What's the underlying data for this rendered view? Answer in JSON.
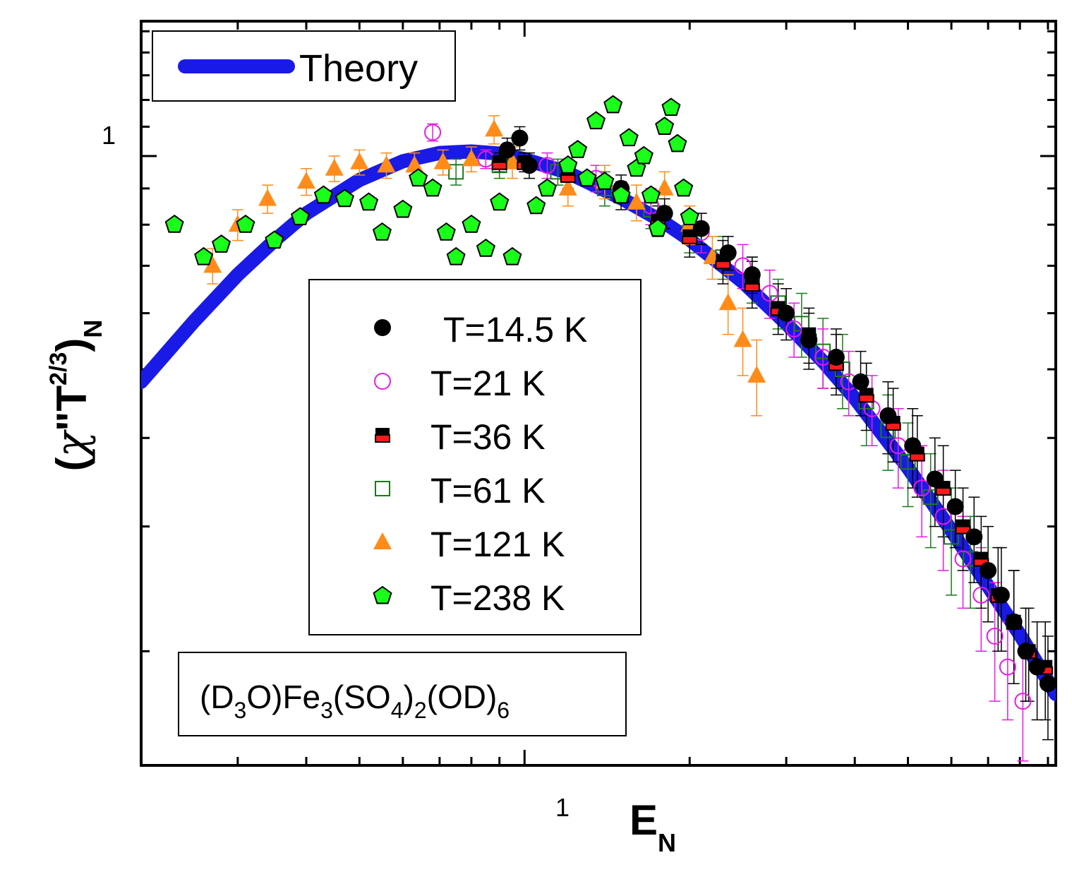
{
  "chart_data": {
    "type": "scatter",
    "x_scale": "log",
    "y_scale": "log",
    "xlim": [
      0.2,
      9.3
    ],
    "ylim": [
      0.138,
      1.55
    ],
    "xticks_major": [
      1
    ],
    "xticks_minor": [
      0.3,
      0.4,
      0.5,
      0.6,
      0.7,
      0.8,
      0.9,
      2,
      3,
      4,
      5,
      6,
      7,
      8,
      9
    ],
    "yticks_major": [
      1
    ],
    "yticks_minor": [
      0.2,
      0.3,
      0.4,
      0.5,
      0.6,
      0.7,
      0.8,
      0.9,
      1.1,
      1.2,
      1.3,
      1.4,
      1.5
    ],
    "xtick_labels": {
      "major": "1"
    },
    "ytick_labels": {
      "major": "1"
    },
    "xlabel": {
      "main": "E",
      "sub": "N"
    },
    "ylabel": {
      "open": "(",
      "chi": "χ",
      "prime": "\"",
      "T": "T",
      "exp": "2/3",
      "close": ")",
      "sub": "N"
    },
    "theory_legend": {
      "label": "Theory"
    },
    "formula": {
      "p1": "(D",
      "s1": "3",
      "p2": "O)Fe",
      "s2": "3",
      "p3": "(SO",
      "s3": "4",
      "p4": ")",
      "s4": "2",
      "p5": "(OD)",
      "s5": "6"
    },
    "colors": {
      "theory": "#1a1ae6",
      "t14": "#000000",
      "t21": "#e619e6",
      "t36_top": "#000000",
      "t36_bottom": "#ff1a1a",
      "t61": "#1a7a1a",
      "t121": "#ff8c1a",
      "t238": "#1aff1a"
    },
    "theory": {
      "name": "Theory",
      "x": [
        0.2,
        0.25,
        0.3,
        0.35,
        0.4,
        0.5,
        0.6,
        0.7,
        0.8,
        0.9,
        1.0,
        1.2,
        1.5,
        1.8,
        2.0,
        2.5,
        3.0,
        3.5,
        4.0,
        5.0,
        6.0,
        7.0,
        8.0,
        9.3
      ],
      "y": [
        0.48,
        0.585,
        0.68,
        0.76,
        0.83,
        0.925,
        0.983,
        1.01,
        1.015,
        1.008,
        0.99,
        0.947,
        0.872,
        0.805,
        0.762,
        0.664,
        0.58,
        0.513,
        0.455,
        0.363,
        0.296,
        0.247,
        0.211,
        0.174
      ]
    },
    "series": [
      {
        "name": "T=14.5 K",
        "marker": "filled-circle",
        "x": [
          0.93,
          0.98,
          1.02,
          1.5,
          1.8,
          2.1,
          2.35,
          2.6,
          3.0,
          3.3,
          3.7,
          4.1,
          4.6,
          5.1,
          5.6,
          6.1,
          6.6,
          7.0,
          7.4,
          7.8,
          8.2,
          8.6,
          9.0
        ],
        "y": [
          1.02,
          1.06,
          0.97,
          0.9,
          0.83,
          0.79,
          0.73,
          0.68,
          0.6,
          0.55,
          0.52,
          0.48,
          0.43,
          0.39,
          0.35,
          0.32,
          0.29,
          0.26,
          0.24,
          0.22,
          0.2,
          0.19,
          0.18
        ],
        "yerr": [
          0.04,
          0.04,
          0.04,
          0.04,
          0.04,
          0.04,
          0.04,
          0.04,
          0.05,
          0.05,
          0.05,
          0.05,
          0.05,
          0.05,
          0.05,
          0.04,
          0.04,
          0.04,
          0.04,
          0.04,
          0.03,
          0.03,
          0.03
        ]
      },
      {
        "name": "T=21 K",
        "marker": "open-circle",
        "x": [
          0.68,
          0.85,
          1.1,
          1.35,
          1.7,
          2.1,
          2.5,
          2.8,
          3.1,
          3.5,
          3.9,
          4.3,
          4.8,
          5.3,
          5.8,
          6.3,
          6.8,
          7.2,
          7.6,
          8.1
        ],
        "y": [
          1.08,
          0.99,
          0.97,
          0.93,
          0.85,
          0.78,
          0.7,
          0.64,
          0.57,
          0.52,
          0.48,
          0.44,
          0.39,
          0.34,
          0.31,
          0.27,
          0.24,
          0.21,
          0.19,
          0.17
        ],
        "yerr": [
          0.03,
          0.03,
          0.04,
          0.04,
          0.05,
          0.05,
          0.05,
          0.05,
          0.05,
          0.05,
          0.05,
          0.05,
          0.05,
          0.05,
          0.05,
          0.04,
          0.04,
          0.04,
          0.03,
          0.03
        ]
      },
      {
        "name": "T=36 K",
        "marker": "half-filled-square",
        "x": [
          0.9,
          1.0,
          1.2,
          1.5,
          1.75,
          2.0,
          2.3,
          2.6,
          2.9,
          3.3,
          3.7,
          4.2,
          4.7,
          5.2,
          5.8,
          6.3,
          6.8,
          7.3,
          7.8,
          8.3,
          8.9
        ],
        "y": [
          0.98,
          0.98,
          0.94,
          0.88,
          0.81,
          0.77,
          0.71,
          0.66,
          0.61,
          0.56,
          0.51,
          0.46,
          0.42,
          0.38,
          0.34,
          0.3,
          0.27,
          0.24,
          0.22,
          0.2,
          0.19
        ],
        "yerr": [
          0.03,
          0.03,
          0.04,
          0.04,
          0.04,
          0.05,
          0.05,
          0.05,
          0.05,
          0.05,
          0.05,
          0.05,
          0.05,
          0.05,
          0.05,
          0.04,
          0.04,
          0.04,
          0.04,
          0.03,
          0.03
        ]
      },
      {
        "name": "T=61 K",
        "marker": "open-square",
        "x": [
          0.75,
          0.9,
          1.15,
          1.4,
          1.7,
          2.0,
          2.3,
          2.6,
          2.9,
          3.2,
          3.5,
          3.8,
          4.2,
          4.6,
          5.0,
          5.5,
          6.0,
          6.5
        ],
        "y": [
          0.95,
          0.97,
          0.95,
          0.9,
          0.84,
          0.78,
          0.72,
          0.67,
          0.62,
          0.58,
          0.53,
          0.5,
          0.45,
          0.41,
          0.37,
          0.33,
          0.29,
          0.27
        ],
        "yerr": [
          0.04,
          0.04,
          0.04,
          0.05,
          0.05,
          0.05,
          0.05,
          0.05,
          0.05,
          0.06,
          0.06,
          0.06,
          0.06,
          0.05,
          0.05,
          0.05,
          0.05,
          0.04
        ]
      },
      {
        "name": "T=121 K",
        "marker": "filled-triangle",
        "x": [
          0.27,
          0.3,
          0.34,
          0.4,
          0.45,
          0.5,
          0.56,
          0.63,
          0.71,
          0.8,
          0.88,
          0.95,
          1.2,
          1.4,
          1.6,
          1.8,
          2.0,
          2.2,
          2.35,
          2.5,
          2.65
        ],
        "y": [
          0.7,
          0.8,
          0.87,
          0.92,
          0.96,
          0.98,
          0.97,
          0.97,
          0.98,
          0.99,
          1.09,
          0.98,
          0.9,
          0.92,
          0.86,
          0.9,
          0.8,
          0.72,
          0.62,
          0.55,
          0.49
        ],
        "yerr": [
          0.04,
          0.04,
          0.04,
          0.04,
          0.04,
          0.04,
          0.04,
          0.04,
          0.04,
          0.04,
          0.05,
          0.05,
          0.05,
          0.05,
          0.05,
          0.05,
          0.05,
          0.05,
          0.06,
          0.06,
          0.06
        ]
      },
      {
        "name": "T=238 K",
        "marker": "filled-pentagon",
        "x": [
          0.23,
          0.26,
          0.28,
          0.31,
          0.35,
          0.39,
          0.43,
          0.47,
          0.52,
          0.55,
          0.6,
          0.64,
          0.68,
          0.72,
          0.75,
          0.8,
          0.85,
          0.9,
          0.95,
          1.05,
          1.1,
          1.2,
          1.25,
          1.3,
          1.35,
          1.4,
          1.45,
          1.5,
          1.55,
          1.6,
          1.65,
          1.7,
          1.75,
          1.8,
          1.85,
          1.9,
          1.95,
          2.0
        ],
        "y": [
          0.8,
          0.72,
          0.75,
          0.8,
          0.76,
          0.82,
          0.88,
          0.87,
          0.86,
          0.78,
          0.84,
          0.93,
          0.9,
          0.78,
          0.72,
          0.8,
          0.74,
          0.86,
          0.72,
          0.85,
          0.9,
          0.97,
          1.02,
          0.93,
          1.12,
          0.92,
          1.18,
          0.88,
          1.06,
          0.96,
          1.0,
          0.88,
          0.79,
          1.1,
          1.17,
          1.04,
          0.9,
          0.82
        ],
        "yerr": [
          0,
          0,
          0,
          0,
          0,
          0,
          0,
          0,
          0,
          0,
          0,
          0,
          0,
          0,
          0,
          0,
          0,
          0,
          0,
          0,
          0,
          0,
          0,
          0,
          0,
          0,
          0,
          0,
          0,
          0,
          0,
          0,
          0,
          0,
          0,
          0,
          0,
          0
        ]
      }
    ]
  }
}
